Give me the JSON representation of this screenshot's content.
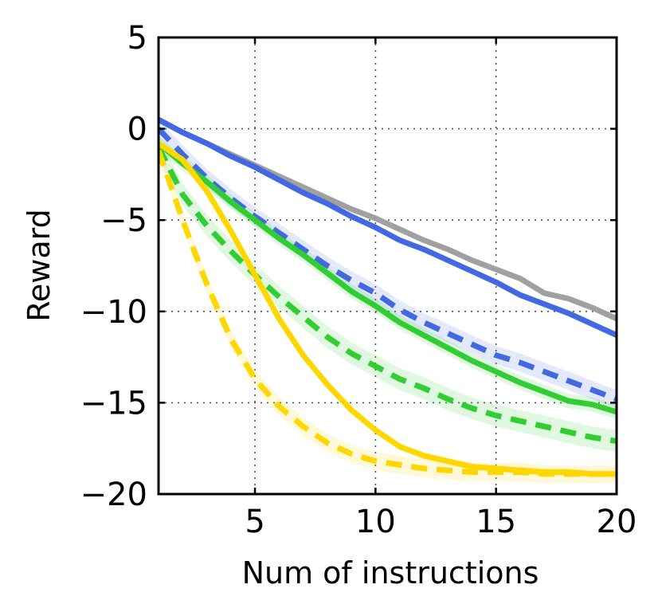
{
  "chart_data": {
    "type": "line",
    "title": "",
    "xlabel": "Num of instructions",
    "ylabel": "Reward",
    "xlim": [
      1,
      20
    ],
    "ylim": [
      -20,
      5
    ],
    "xticks": [
      5,
      10,
      15,
      20
    ],
    "yticks": [
      5,
      0,
      -5,
      -10,
      -15,
      -20
    ],
    "xtick_labels": [
      "5",
      "10",
      "15",
      "20"
    ],
    "ytick_labels": [
      "5",
      "0",
      "−5",
      "−10",
      "−15",
      "−20"
    ],
    "grid": true,
    "x": [
      1,
      2,
      3,
      4,
      5,
      6,
      7,
      8,
      9,
      10,
      11,
      12,
      13,
      14,
      15,
      16,
      17,
      18,
      19,
      20
    ],
    "series": [
      {
        "name": "gray-solid",
        "color": "#a0a0a0",
        "style": "solid",
        "values": [
          0.5,
          -0.2,
          -0.8,
          -1.4,
          -2.0,
          -2.6,
          -3.2,
          -3.8,
          -4.4,
          -4.9,
          -5.5,
          -6.1,
          -6.6,
          -7.2,
          -7.7,
          -8.2,
          -9.0,
          -9.3,
          -9.8,
          -10.4
        ],
        "band": 0
      },
      {
        "name": "blue-solid",
        "color": "#4169e1",
        "style": "solid",
        "values": [
          0.5,
          -0.2,
          -0.8,
          -1.5,
          -2.1,
          -2.8,
          -3.5,
          -4.1,
          -4.8,
          -5.4,
          -6.1,
          -6.6,
          -7.2,
          -7.8,
          -8.4,
          -9.1,
          -9.6,
          -10.1,
          -10.7,
          -11.3
        ],
        "band": 0
      },
      {
        "name": "blue-dashed",
        "color": "#4169e1",
        "style": "dashed",
        "values": [
          0.0,
          -1.4,
          -2.7,
          -3.8,
          -4.8,
          -5.7,
          -6.6,
          -7.5,
          -8.3,
          -9.0,
          -9.9,
          -10.6,
          -11.2,
          -11.8,
          -12.4,
          -12.8,
          -13.3,
          -13.8,
          -14.3,
          -14.8
        ],
        "band": 0.5
      },
      {
        "name": "green-solid",
        "color": "#32cd32",
        "style": "solid",
        "values": [
          -0.8,
          -1.9,
          -2.9,
          -4.0,
          -5.0,
          -6.0,
          -6.9,
          -7.9,
          -8.9,
          -9.7,
          -10.6,
          -11.3,
          -12.0,
          -12.7,
          -13.3,
          -13.9,
          -14.4,
          -14.9,
          -15.1,
          -15.5
        ],
        "band": 0.4
      },
      {
        "name": "green-dashed",
        "color": "#32cd32",
        "style": "dashed",
        "values": [
          -1.0,
          -3.6,
          -5.3,
          -6.7,
          -8.0,
          -9.2,
          -10.3,
          -11.4,
          -12.3,
          -13.0,
          -13.7,
          -14.2,
          -14.8,
          -15.3,
          -15.7,
          -16.0,
          -16.3,
          -16.6,
          -16.9,
          -17.1
        ],
        "band": 0.6
      },
      {
        "name": "gold-solid",
        "color": "#ffd700",
        "style": "solid",
        "values": [
          -0.8,
          -1.7,
          -3.4,
          -5.6,
          -8.0,
          -10.4,
          -12.4,
          -14.0,
          -15.4,
          -16.5,
          -17.4,
          -17.9,
          -18.2,
          -18.5,
          -18.6,
          -18.7,
          -18.8,
          -18.8,
          -18.9,
          -18.9
        ],
        "band": 0.2
      },
      {
        "name": "gold-dashed",
        "color": "#ffd700",
        "style": "dashed",
        "values": [
          -1.2,
          -5.0,
          -8.5,
          -11.5,
          -13.7,
          -15.2,
          -16.3,
          -17.2,
          -17.8,
          -18.2,
          -18.4,
          -18.6,
          -18.7,
          -18.8,
          -18.8,
          -18.8,
          -18.9,
          -18.9,
          -18.9,
          -18.9
        ],
        "band": 0.5
      }
    ]
  }
}
